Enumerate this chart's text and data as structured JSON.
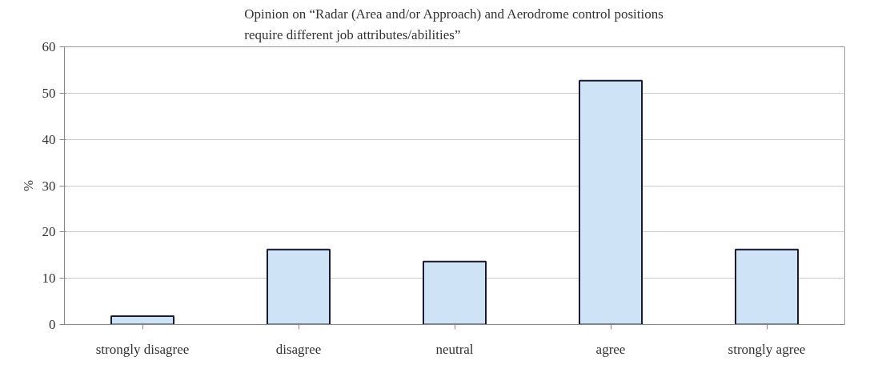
{
  "chart_data": {
    "type": "bar",
    "title": "Opinion on “Radar (Area and/or Approach) and Aerodrome control positions\nrequire different job attributes/abilities”",
    "ylabel": "%",
    "categories": [
      "strongly disagree",
      "disagree",
      "neutral",
      "agree",
      "strongly agree"
    ],
    "values": [
      1.8,
      16.2,
      13.6,
      52.7,
      16.2
    ],
    "color": "#cfe3f7",
    "ylim": [
      0,
      60
    ],
    "yticks": [
      0,
      10,
      20,
      30,
      40,
      50,
      60
    ],
    "grid": "y"
  }
}
